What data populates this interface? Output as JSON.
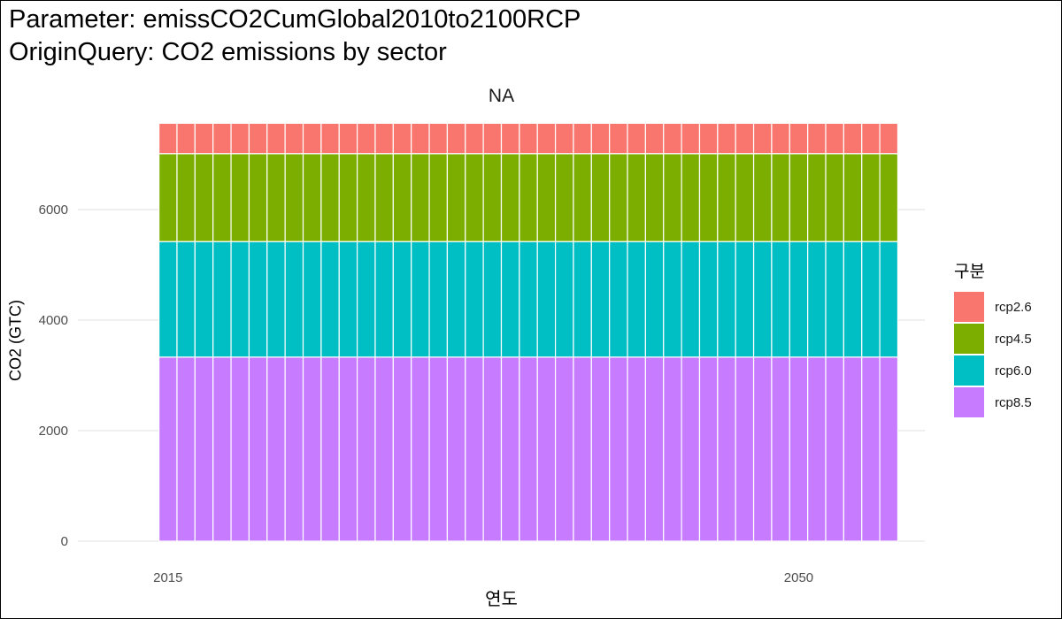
{
  "titles": {
    "line1": "Parameter: emissCO2CumGlobal2010to2100RCP",
    "line2": "OriginQuery: CO2 emissions by sector"
  },
  "panel_label": "NA",
  "chart_data": {
    "type": "bar",
    "stacked": true,
    "title": "Parameter: emissCO2CumGlobal2010to2100RCP\nOriginQuery: CO2 emissions by sector",
    "facet": "NA",
    "xlabel": "연도",
    "ylabel": "CO2 (GTC)",
    "x": [
      2015,
      2016,
      2017,
      2018,
      2019,
      2020,
      2021,
      2022,
      2023,
      2024,
      2025,
      2026,
      2027,
      2028,
      2029,
      2030,
      2031,
      2032,
      2033,
      2034,
      2035,
      2036,
      2037,
      2038,
      2039,
      2040,
      2041,
      2042,
      2043,
      2044,
      2045,
      2046,
      2047,
      2048,
      2049,
      2050,
      2051,
      2052,
      2053,
      2054,
      2055
    ],
    "xlim": [
      2010,
      2057
    ],
    "x_ticks": [
      2015,
      2050
    ],
    "ylim": [
      0,
      7550
    ],
    "y_ticks": [
      0,
      2000,
      4000,
      6000
    ],
    "grid": true,
    "legend_title": "구분",
    "legend_position": "right",
    "series": [
      {
        "name": "rcp8.5",
        "color": "#C77CFF",
        "value": 3330
      },
      {
        "name": "rcp6.0",
        "color": "#00BFC4",
        "value": 2090
      },
      {
        "name": "rcp4.5",
        "color": "#7CAE00",
        "value": 1590
      },
      {
        "name": "rcp2.6",
        "color": "#F8766D",
        "value": 550
      }
    ],
    "legend_order": [
      "rcp2.6",
      "rcp4.5",
      "rcp6.0",
      "rcp8.5"
    ]
  }
}
